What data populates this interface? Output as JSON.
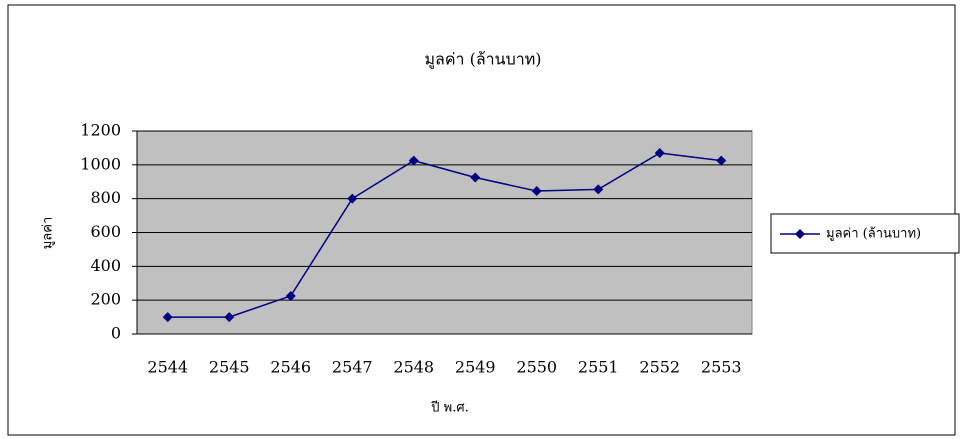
{
  "chart_data": {
    "type": "line",
    "title": "มูลค่า (ล้านบาท)",
    "x_label": "ปี พ.ศ.",
    "y_label": "มูลค่า",
    "categories": [
      "2544",
      "2545",
      "2546",
      "2547",
      "2548",
      "2549",
      "2550",
      "2551",
      "2552",
      "2553"
    ],
    "series": [
      {
        "name": "มูลค่า (ล้านบาท)",
        "color": "#000080",
        "values": [
          100,
          100,
          225,
          800,
          1025,
          925,
          845,
          855,
          1070,
          1025
        ]
      }
    ],
    "ylim": [
      0,
      1200
    ],
    "yticks": [
      0,
      200,
      400,
      600,
      800,
      1000,
      1200
    ],
    "grid": true,
    "legend": "right",
    "plot_background": "#c0c0c0"
  }
}
